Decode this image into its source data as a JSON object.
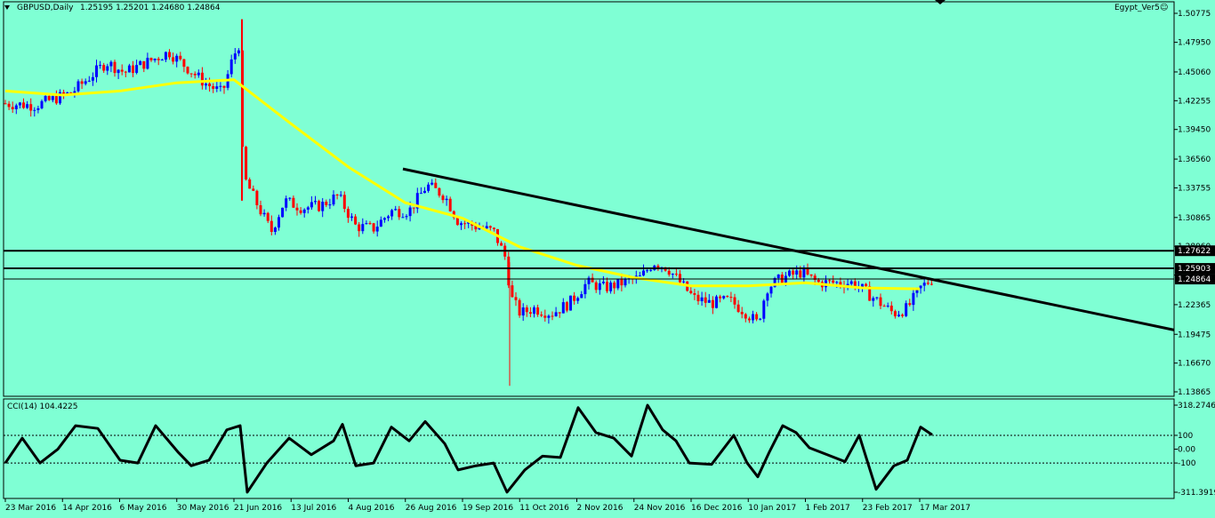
{
  "header": {
    "symbol": "GBPUSD,Daily",
    "ohlc": "1.25195 1.25201 1.24680 1.24864",
    "expert": "Egypt_Ver5",
    "smiley": "☺"
  },
  "price_axis": {
    "ticks": [
      1.50775,
      1.4795,
      1.4506,
      1.42255,
      1.3945,
      1.3656,
      1.33755,
      1.30865,
      1.2806,
      1.25255,
      1.22365,
      1.19475,
      1.1667,
      1.13865
    ],
    "tick_labels": [
      "1.50775",
      "1.47950",
      "1.45060",
      "1.42255",
      "1.39450",
      "1.36560",
      "1.33755",
      "1.30865",
      "1.28060",
      "1.25255",
      "1.22365",
      "1.19475",
      "1.16670",
      "1.13865"
    ],
    "ylim": [
      1.13865,
      1.50775
    ]
  },
  "levels": [
    {
      "value": 1.27622,
      "label": "1.27622"
    },
    {
      "value": 1.25903,
      "label": "1.25903"
    },
    {
      "value": 1.24864,
      "label": "1.24864"
    }
  ],
  "date_axis": {
    "labels": [
      "23 Mar 2016",
      "14 Apr 2016",
      "6 May 2016",
      "30 May 2016",
      "21 Jun 2016",
      "13 Jul 2016",
      "4 Aug 2016",
      "26 Aug 2016",
      "19 Sep 2016",
      "11 Oct 2016",
      "2 Nov 2016",
      "24 Nov 2016",
      "16 Dec 2016",
      "10 Jan 2017",
      "1 Feb 2017",
      "23 Feb 2017",
      "17 Mar 2017"
    ]
  },
  "indicator": {
    "name": "CCI(14) 104.4225",
    "axis_labels": [
      "318.2746",
      "100",
      "0.00",
      "-100",
      "-311.3919"
    ],
    "axis_values": [
      318.2746,
      100,
      0,
      -100,
      -311.3919
    ]
  },
  "colors": {
    "background": "#7FFFD4",
    "bull": "#0000FF",
    "bear": "#FF0000",
    "ma": "#FFFF00",
    "line": "#000000"
  },
  "chart_data": {
    "type": "candlestick",
    "symbol": "GBPUSD",
    "timeframe": "Daily",
    "last_bar": {
      "open": 1.25195,
      "high": 1.25201,
      "low": 1.2468,
      "close": 1.24864
    },
    "moving_average_points": [
      {
        "date": "23 Mar 2016",
        "price": 1.432
      },
      {
        "date": "14 Apr 2016",
        "price": 1.428
      },
      {
        "date": "6 May 2016",
        "price": 1.432
      },
      {
        "date": "30 May 2016",
        "price": 1.44
      },
      {
        "date": "21 Jun 2016",
        "price": 1.443
      },
      {
        "date": "13 Jul 2016",
        "price": 1.4
      },
      {
        "date": "4 Aug 2016",
        "price": 1.358
      },
      {
        "date": "26 Aug 2016",
        "price": 1.323
      },
      {
        "date": "19 Sep 2016",
        "price": 1.308
      },
      {
        "date": "11 Oct 2016",
        "price": 1.28
      },
      {
        "date": "2 Nov 2016",
        "price": 1.262
      },
      {
        "date": "24 Nov 2016",
        "price": 1.25
      },
      {
        "date": "16 Dec 2016",
        "price": 1.242
      },
      {
        "date": "10 Jan 2017",
        "price": 1.242
      },
      {
        "date": "1 Feb 2017",
        "price": 1.245
      },
      {
        "date": "23 Feb 2017",
        "price": 1.24
      },
      {
        "date": "17 Mar 2017",
        "price": 1.239
      }
    ],
    "trendline": {
      "start": {
        "date": "26 Aug 2016",
        "price": 1.356
      },
      "end": {
        "date": "right-edge",
        "price": 1.199
      }
    },
    "horizontal_levels": [
      1.27622,
      1.25903,
      1.24864
    ],
    "cci_current": 104.4225
  }
}
